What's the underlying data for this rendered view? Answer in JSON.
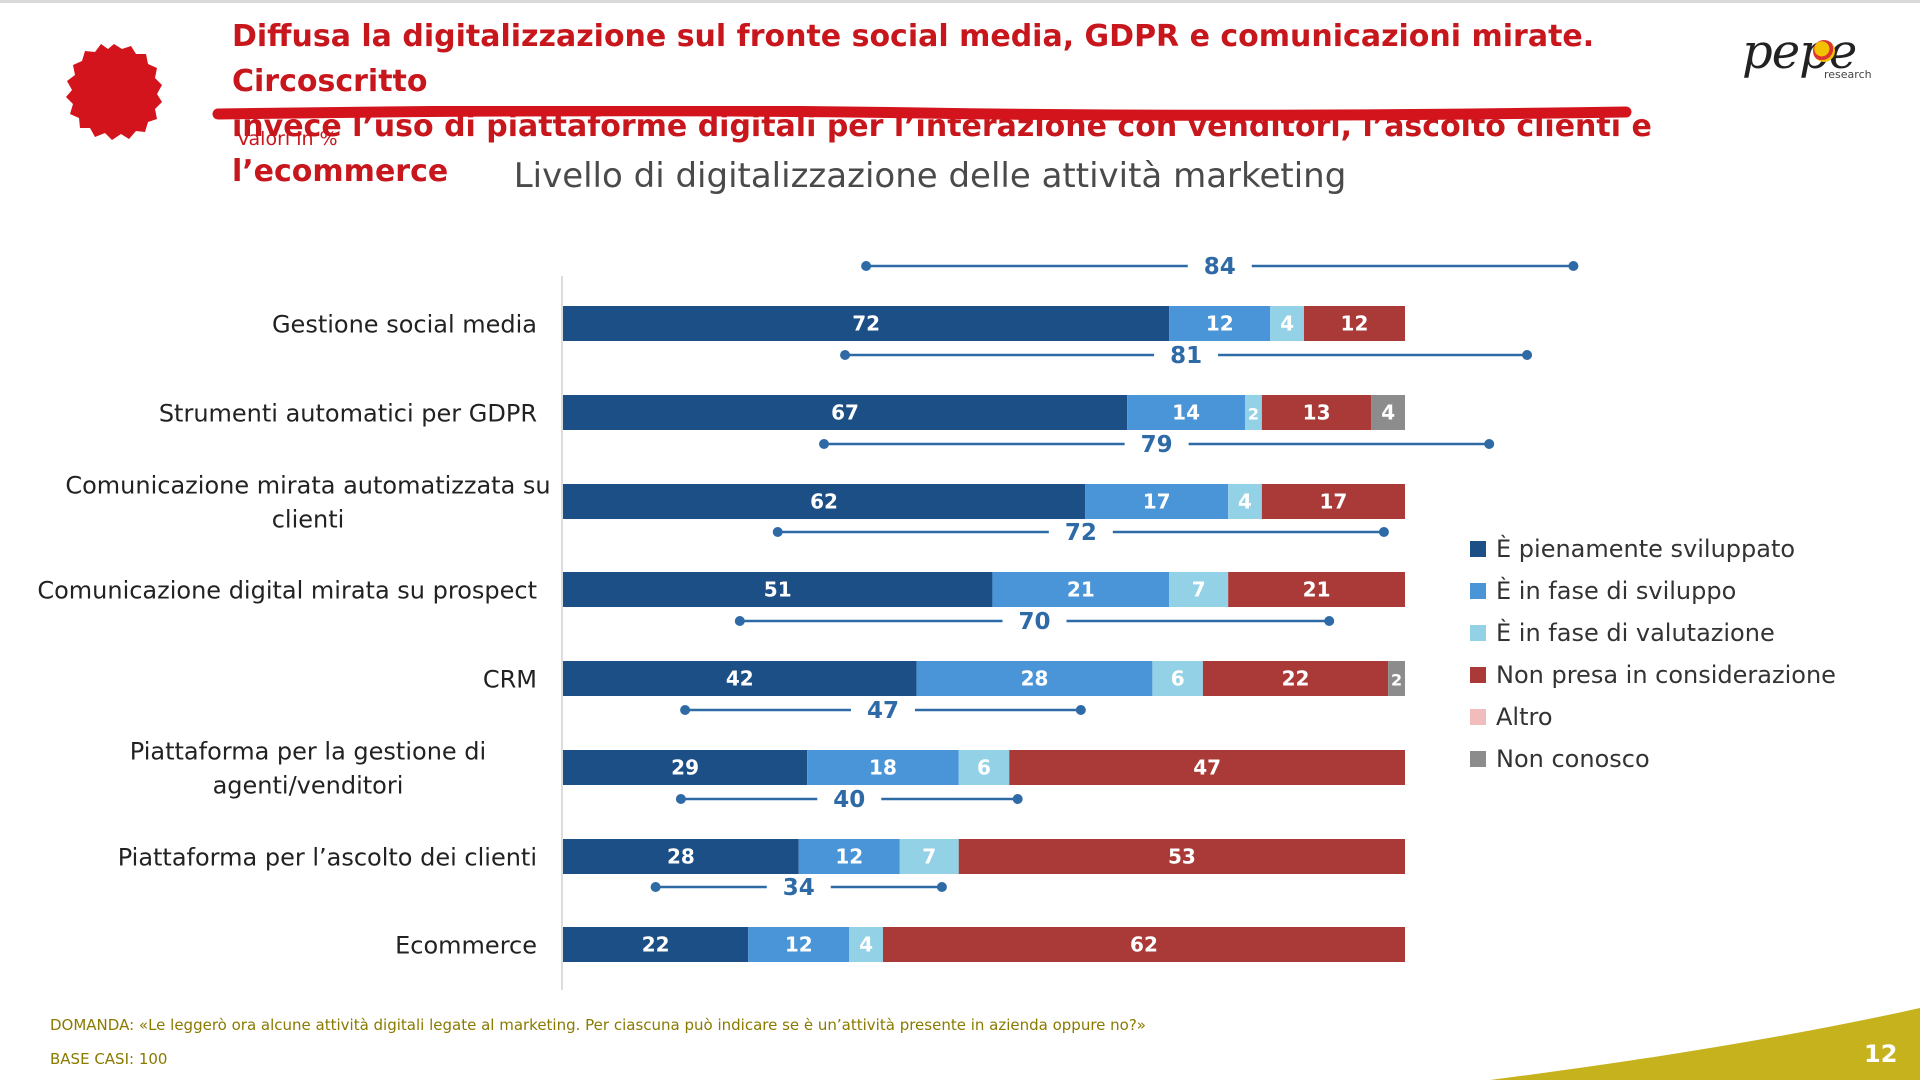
{
  "header": {
    "headline_line1": "Diffusa la digitalizzazione sul fronte social media, GDPR e comunicazioni mirate. Circoscritto",
    "headline_line2": "invece l’uso di piattaforme digitali per l’interazione con venditori, l’ascolto clienti e l’ecommerce",
    "units": "Valori in %",
    "logo_text": "pepe",
    "logo_sub": "research"
  },
  "chart_data": {
    "type": "bar",
    "orientation": "horizontal",
    "stacked": true,
    "title": "Livello di digitalizzazione delle attività marketing",
    "categories": [
      "Gestione social media",
      "Strumenti automatici per GDPR",
      "Comunicazione mirata automatizzata su clienti",
      "Comunicazione digital mirata su prospect",
      "CRM",
      "Piattaforma per la gestione di agenti/venditori",
      "Piattaforma per l’ascolto dei clienti",
      "Ecommerce"
    ],
    "category_lines": [
      [
        "Gestione social media"
      ],
      [
        "Strumenti automatici per GDPR"
      ],
      [
        "Comunicazione mirata automatizzata su",
        "clienti"
      ],
      [
        "Comunicazione digital mirata su prospect"
      ],
      [
        "CRM"
      ],
      [
        "Piattaforma per la gestione di",
        "agenti/venditori"
      ],
      [
        "Piattaforma per l’ascolto dei clienti"
      ],
      [
        "Ecommerce"
      ]
    ],
    "series": [
      {
        "name": "È pienamente sviluppato",
        "color": "#1c4f86",
        "values": [
          72,
          67,
          62,
          51,
          42,
          29,
          28,
          22
        ]
      },
      {
        "name": "È in fase di sviluppo",
        "color": "#4a95d8",
        "values": [
          12,
          14,
          17,
          21,
          28,
          18,
          12,
          12
        ]
      },
      {
        "name": "È in fase di valutazione",
        "color": "#93d2e6",
        "values": [
          4,
          2,
          4,
          7,
          6,
          6,
          7,
          4
        ]
      },
      {
        "name": "Non presa in considerazione",
        "color": "#a93a38",
        "values": [
          12,
          13,
          17,
          21,
          22,
          47,
          53,
          62
        ]
      },
      {
        "name": "Altro",
        "color": "#f1bcbc",
        "values": [
          0,
          0,
          0,
          0,
          0,
          0,
          0,
          0
        ]
      },
      {
        "name": "Non conosco",
        "color": "#8c8c8c",
        "values": [
          0,
          4,
          0,
          0,
          2,
          0,
          0,
          0
        ]
      }
    ],
    "totals_first_two_series": [
      84,
      81,
      79,
      72,
      70,
      47,
      40,
      34
    ],
    "xlim": [
      0,
      100
    ],
    "legend_position": "right",
    "grid": false
  },
  "footer": {
    "question": "DOMANDA: «Le leggerò ora alcune attività digitali legate al marketing. Per ciascuna può indicare se è un’attività presente in azienda oppure no?»",
    "base": "BASE CASI: 100",
    "page_number": "12",
    "accent_color": "#c6b21c"
  }
}
